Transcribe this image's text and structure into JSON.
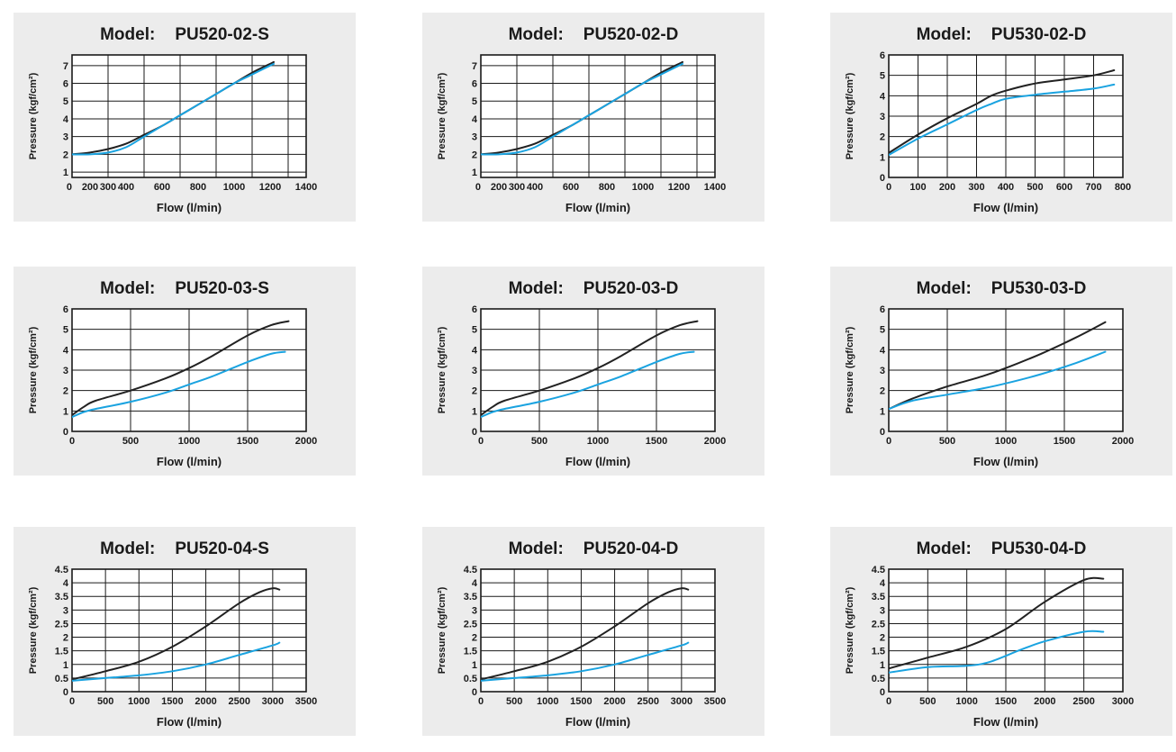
{
  "colors": {
    "background": "#ececec",
    "grid": "#1a1a1a",
    "series_dark": "#222222",
    "series_blue": "#1aa3e0"
  },
  "chart_data": [
    {
      "type": "line",
      "title_prefix": "Model:",
      "title": "PU520-02-S",
      "xlabel": "Flow (l/min)",
      "ylabel": "Pressure (kgf/cm²)",
      "xlim": [
        100,
        1400
      ],
      "ylim": [
        0.7,
        7.6
      ],
      "xticks": [
        0,
        200,
        300,
        400,
        600,
        800,
        1000,
        1200,
        1400
      ],
      "xtick_labels": [
        "0",
        "200",
        "300",
        "400",
        "600",
        "800",
        "1000",
        "1200",
        "1400"
      ],
      "yticks": [
        1,
        2,
        3,
        4,
        5,
        6,
        7
      ],
      "ytick_labels": [
        "1",
        "2",
        "3",
        "4",
        "5",
        "6",
        "7"
      ],
      "xgrid": [
        100,
        300,
        500,
        700,
        900,
        1100,
        1300,
        1400
      ],
      "ygrid": [
        1,
        2,
        3,
        4,
        5,
        6,
        7
      ],
      "series": [
        {
          "color": "dark",
          "x": [
            100,
            200,
            300,
            400,
            500,
            600,
            700,
            800,
            900,
            1000,
            1100,
            1200,
            1220
          ],
          "y": [
            2.0,
            2.1,
            2.3,
            2.6,
            3.1,
            3.6,
            4.2,
            4.8,
            5.4,
            6.0,
            6.6,
            7.1,
            7.2
          ]
        },
        {
          "color": "blue",
          "x": [
            100,
            200,
            300,
            400,
            500,
            600,
            700,
            800,
            900,
            1000,
            1100,
            1200,
            1220
          ],
          "y": [
            2.0,
            2.0,
            2.1,
            2.4,
            3.0,
            3.6,
            4.2,
            4.8,
            5.4,
            6.0,
            6.5,
            7.0,
            7.1
          ]
        }
      ]
    },
    {
      "type": "line",
      "title_prefix": "Model:",
      "title": "PU520-02-D",
      "xlabel": "Flow (l/min)",
      "ylabel": "Pressure (kgf/cm²)",
      "xlim": [
        100,
        1400
      ],
      "ylim": [
        0.7,
        7.6
      ],
      "xticks": [
        0,
        200,
        300,
        400,
        600,
        800,
        1000,
        1200,
        1400
      ],
      "xtick_labels": [
        "0",
        "200",
        "300",
        "400",
        "600",
        "800",
        "1000",
        "1200",
        "1400"
      ],
      "yticks": [
        1,
        2,
        3,
        4,
        5,
        6,
        7
      ],
      "ytick_labels": [
        "1",
        "2",
        "3",
        "4",
        "5",
        "6",
        "7"
      ],
      "xgrid": [
        100,
        300,
        500,
        700,
        900,
        1100,
        1300,
        1400
      ],
      "ygrid": [
        1,
        2,
        3,
        4,
        5,
        6,
        7
      ],
      "series": [
        {
          "color": "dark",
          "x": [
            100,
            200,
            300,
            400,
            500,
            600,
            700,
            800,
            900,
            1000,
            1100,
            1200,
            1220
          ],
          "y": [
            2.0,
            2.1,
            2.3,
            2.6,
            3.1,
            3.6,
            4.2,
            4.8,
            5.4,
            6.0,
            6.6,
            7.1,
            7.2
          ]
        },
        {
          "color": "blue",
          "x": [
            100,
            200,
            300,
            400,
            500,
            600,
            700,
            800,
            900,
            1000,
            1100,
            1200,
            1220
          ],
          "y": [
            2.0,
            2.0,
            2.1,
            2.4,
            3.0,
            3.6,
            4.2,
            4.8,
            5.4,
            6.0,
            6.5,
            7.0,
            7.1
          ]
        }
      ]
    },
    {
      "type": "line",
      "title_prefix": "Model:",
      "title": "PU530-02-D",
      "xlabel": "Flow (l/min)",
      "ylabel": "Pressure (kgf/cm²)",
      "xlim": [
        0,
        800
      ],
      "ylim": [
        0,
        6
      ],
      "xticks": [
        0,
        100,
        200,
        300,
        400,
        500,
        600,
        700,
        800
      ],
      "xtick_labels": [
        "0",
        "100",
        "200",
        "300",
        "400",
        "500",
        "600",
        "700",
        "800"
      ],
      "yticks": [
        0,
        1,
        2,
        3,
        4,
        5,
        6
      ],
      "ytick_labels": [
        "0",
        "1",
        "2",
        "3",
        "4",
        "5",
        "6"
      ],
      "xgrid": [
        100,
        200,
        300,
        400,
        500,
        600,
        700,
        800
      ],
      "ygrid": [
        1,
        2,
        3,
        4,
        5,
        6
      ],
      "series": [
        {
          "color": "dark",
          "x": [
            0,
            100,
            200,
            300,
            350,
            400,
            500,
            600,
            700,
            770
          ],
          "y": [
            1.2,
            2.1,
            2.9,
            3.6,
            4.0,
            4.25,
            4.6,
            4.8,
            5.0,
            5.25
          ]
        },
        {
          "color": "blue",
          "x": [
            0,
            100,
            200,
            300,
            350,
            400,
            500,
            600,
            700,
            770
          ],
          "y": [
            1.1,
            1.9,
            2.6,
            3.3,
            3.6,
            3.85,
            4.05,
            4.2,
            4.35,
            4.55
          ]
        }
      ]
    },
    {
      "type": "line",
      "title_prefix": "Model:",
      "title": "PU520-03-S",
      "xlabel": "Flow (l/min)",
      "ylabel": "Pressure (kgf/cm²)",
      "xlim": [
        0,
        2000
      ],
      "ylim": [
        0,
        6
      ],
      "xticks": [
        0,
        500,
        1000,
        1500,
        2000
      ],
      "xtick_labels": [
        "0",
        "500",
        "1000",
        "1500",
        "2000"
      ],
      "yticks": [
        0,
        1,
        2,
        3,
        4,
        5,
        6
      ],
      "ytick_labels": [
        "0",
        "1",
        "2",
        "3",
        "4",
        "5",
        "6"
      ],
      "xgrid": [
        500,
        1000,
        1500,
        2000
      ],
      "ygrid": [
        1,
        2,
        3,
        4,
        5,
        6
      ],
      "series": [
        {
          "color": "dark",
          "x": [
            0,
            100,
            200,
            500,
            800,
            1000,
            1200,
            1500,
            1700,
            1850
          ],
          "y": [
            0.8,
            1.2,
            1.5,
            2.0,
            2.6,
            3.1,
            3.7,
            4.7,
            5.2,
            5.4
          ]
        },
        {
          "color": "blue",
          "x": [
            0,
            100,
            200,
            500,
            800,
            1000,
            1200,
            1500,
            1700,
            1820
          ],
          "y": [
            0.7,
            0.95,
            1.1,
            1.45,
            1.9,
            2.3,
            2.7,
            3.4,
            3.8,
            3.9
          ]
        }
      ]
    },
    {
      "type": "line",
      "title_prefix": "Model:",
      "title": "PU520-03-D",
      "xlabel": "Flow (l/min)",
      "ylabel": "Pressure (kgf/cm²)",
      "xlim": [
        0,
        2000
      ],
      "ylim": [
        0,
        6
      ],
      "xticks": [
        0,
        500,
        1000,
        1500,
        2000
      ],
      "xtick_labels": [
        "0",
        "500",
        "1000",
        "1500",
        "2000"
      ],
      "yticks": [
        0,
        1,
        2,
        3,
        4,
        5,
        6
      ],
      "ytick_labels": [
        "0",
        "1",
        "2",
        "3",
        "4",
        "5",
        "6"
      ],
      "xgrid": [
        500,
        1000,
        1500,
        2000
      ],
      "ygrid": [
        1,
        2,
        3,
        4,
        5,
        6
      ],
      "series": [
        {
          "color": "dark",
          "x": [
            0,
            100,
            200,
            500,
            800,
            1000,
            1200,
            1500,
            1700,
            1850
          ],
          "y": [
            0.8,
            1.2,
            1.5,
            2.0,
            2.6,
            3.1,
            3.7,
            4.7,
            5.2,
            5.4
          ]
        },
        {
          "color": "blue",
          "x": [
            0,
            100,
            200,
            500,
            800,
            1000,
            1200,
            1500,
            1700,
            1820
          ],
          "y": [
            0.7,
            0.95,
            1.1,
            1.45,
            1.9,
            2.3,
            2.7,
            3.4,
            3.8,
            3.9
          ]
        }
      ]
    },
    {
      "type": "line",
      "title_prefix": "Model:",
      "title": "PU530-03-D",
      "xlabel": "Flow (l/min)",
      "ylabel": "Pressure (kgf/cm²)",
      "xlim": [
        0,
        2000
      ],
      "ylim": [
        0,
        6
      ],
      "xticks": [
        0,
        500,
        1000,
        1500,
        2000
      ],
      "xtick_labels": [
        "0",
        "500",
        "1000",
        "1500",
        "2000"
      ],
      "yticks": [
        0,
        1,
        2,
        3,
        4,
        5,
        6
      ],
      "ytick_labels": [
        "0",
        "1",
        "2",
        "3",
        "4",
        "5",
        "6"
      ],
      "xgrid": [
        500,
        1000,
        1500,
        2000
      ],
      "ygrid": [
        1,
        2,
        3,
        4,
        5,
        6
      ],
      "series": [
        {
          "color": "dark",
          "x": [
            0,
            200,
            500,
            800,
            1000,
            1300,
            1600,
            1850
          ],
          "y": [
            1.1,
            1.6,
            2.2,
            2.7,
            3.1,
            3.8,
            4.6,
            5.35
          ]
        },
        {
          "color": "blue",
          "x": [
            0,
            200,
            500,
            800,
            1000,
            1300,
            1600,
            1850
          ],
          "y": [
            1.1,
            1.5,
            1.8,
            2.1,
            2.35,
            2.8,
            3.35,
            3.9
          ]
        }
      ]
    },
    {
      "type": "line",
      "title_prefix": "Model:",
      "title": "PU520-04-S",
      "xlabel": "Flow (l/min)",
      "ylabel": "Pressure (kgf/cm²)",
      "xlim": [
        0,
        3500
      ],
      "ylim": [
        0,
        4.5
      ],
      "xticks": [
        0,
        500,
        1000,
        1500,
        2000,
        2500,
        3000,
        3500
      ],
      "xtick_labels": [
        "0",
        "500",
        "1000",
        "1500",
        "2000",
        "2500",
        "3000",
        "3500"
      ],
      "yticks": [
        0,
        0.5,
        1,
        1.5,
        2,
        2.5,
        3,
        3.5,
        4,
        4.5
      ],
      "ytick_labels": [
        "0",
        "0.5",
        "1",
        "1.5",
        "2",
        "2.5",
        "3",
        "3.5",
        "4",
        "4.5"
      ],
      "xgrid": [
        500,
        1000,
        1500,
        2000,
        2500,
        3000,
        3500
      ],
      "ygrid": [
        0.5,
        1,
        1.5,
        2,
        2.5,
        3,
        3.5,
        4,
        4.5
      ],
      "series": [
        {
          "color": "dark",
          "x": [
            0,
            500,
            1000,
            1500,
            2000,
            2500,
            2800,
            3000,
            3100
          ],
          "y": [
            0.45,
            0.75,
            1.1,
            1.65,
            2.4,
            3.25,
            3.65,
            3.8,
            3.75
          ]
        },
        {
          "color": "blue",
          "x": [
            0,
            500,
            1000,
            1500,
            2000,
            2500,
            3000,
            3100
          ],
          "y": [
            0.4,
            0.5,
            0.6,
            0.75,
            1.0,
            1.35,
            1.7,
            1.8
          ]
        }
      ]
    },
    {
      "type": "line",
      "title_prefix": "Model:",
      "title": "PU520-04-D",
      "xlabel": "Flow (l/min)",
      "ylabel": "Pressure (kgf/cm²)",
      "xlim": [
        0,
        3500
      ],
      "ylim": [
        0,
        4.5
      ],
      "xticks": [
        0,
        500,
        1000,
        1500,
        2000,
        2500,
        3000,
        3500
      ],
      "xtick_labels": [
        "0",
        "500",
        "1000",
        "1500",
        "2000",
        "2500",
        "3000",
        "3500"
      ],
      "yticks": [
        0,
        0.5,
        1,
        1.5,
        2,
        2.5,
        3,
        3.5,
        4,
        4.5
      ],
      "ytick_labels": [
        "0",
        "0.5",
        "1",
        "1.5",
        "2",
        "2.5",
        "3",
        "3.5",
        "4",
        "4.5"
      ],
      "xgrid": [
        500,
        1000,
        1500,
        2000,
        2500,
        3000,
        3500
      ],
      "ygrid": [
        0.5,
        1,
        1.5,
        2,
        2.5,
        3,
        3.5,
        4,
        4.5
      ],
      "series": [
        {
          "color": "dark",
          "x": [
            0,
            500,
            1000,
            1500,
            2000,
            2500,
            2800,
            3000,
            3100
          ],
          "y": [
            0.45,
            0.75,
            1.1,
            1.65,
            2.4,
            3.25,
            3.65,
            3.8,
            3.75
          ]
        },
        {
          "color": "blue",
          "x": [
            0,
            500,
            1000,
            1500,
            2000,
            2500,
            3000,
            3100
          ],
          "y": [
            0.4,
            0.5,
            0.6,
            0.75,
            1.0,
            1.35,
            1.7,
            1.8
          ]
        }
      ]
    },
    {
      "type": "line",
      "title_prefix": "Model:",
      "title": "PU530-04-D",
      "xlabel": "Flow (l/min)",
      "ylabel": "Pressure (kgf/cm²)",
      "xlim": [
        0,
        3000
      ],
      "ylim": [
        0,
        4.5
      ],
      "xticks": [
        0,
        500,
        1000,
        1500,
        2000,
        2500,
        3000
      ],
      "xtick_labels": [
        "0",
        "500",
        "1000",
        "1500",
        "2000",
        "2500",
        "3000"
      ],
      "yticks": [
        0,
        0.5,
        1,
        1.5,
        2,
        2.5,
        3,
        3.5,
        4,
        4.5
      ],
      "ytick_labels": [
        "0",
        "0.5",
        "1",
        "1.5",
        "2",
        "2.5",
        "3",
        "3.5",
        "4",
        "4.5"
      ],
      "xgrid": [
        500,
        1000,
        1500,
        2000,
        2500,
        3000
      ],
      "ygrid": [
        0.5,
        1,
        1.5,
        2,
        2.5,
        3,
        3.5,
        4,
        4.5
      ],
      "series": [
        {
          "color": "dark",
          "x": [
            0,
            500,
            1000,
            1500,
            2000,
            2500,
            2750
          ],
          "y": [
            0.85,
            1.25,
            1.65,
            2.3,
            3.3,
            4.1,
            4.15
          ]
        },
        {
          "color": "blue",
          "x": [
            0,
            500,
            1000,
            1300,
            1700,
            2000,
            2500,
            2750
          ],
          "y": [
            0.7,
            0.9,
            0.95,
            1.1,
            1.55,
            1.85,
            2.2,
            2.2
          ]
        }
      ]
    }
  ]
}
